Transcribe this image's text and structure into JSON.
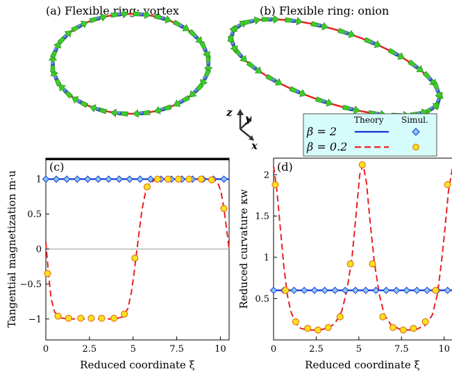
{
  "panels": {
    "a_title": "(a) Flexible ring: vortex",
    "b_title": "(b) Flexible ring: onion",
    "c_label": "(c)",
    "d_label": "(d)"
  },
  "axes_triad": {
    "z": "z",
    "y": "y",
    "x": "x"
  },
  "legend": {
    "theory": "Theory",
    "simul": "Simul.",
    "row1": "β = 2",
    "row2": "β = 0.2"
  },
  "colors": {
    "beta2": "#1030d0",
    "beta02": "#e8201f",
    "marker_beta2_fill": "#86c8f2",
    "marker_beta02_fill": "#f6e21e",
    "marker_beta02_edge": "#e8600a",
    "legend_bg": "#d6fbfb",
    "ring": "#e8201f",
    "arrow": "#3ccc2a",
    "dot": "#2040c0"
  },
  "chart_data": [
    {
      "type": "line",
      "panel": "c",
      "xlabel": "Reduced coordinate ξ",
      "ylabel": "Tangential magnetization m·u",
      "xlim": [
        0,
        10.5
      ],
      "ylim": [
        -1.3,
        1.3
      ],
      "xticks": [
        "0",
        "2.5",
        "5",
        "7.5",
        "10"
      ],
      "xtick_values": [
        0,
        2.5,
        5,
        7.5,
        10
      ],
      "yticks": [
        "−1",
        "−0.5",
        "0",
        "0.5",
        "1"
      ],
      "ytick_values": [
        -1,
        -0.5,
        0,
        0.5,
        1
      ],
      "series": [
        {
          "name": "β = 2",
          "style": "solid",
          "theory": {
            "x": [
              0,
              10.5
            ],
            "y": [
              1,
              1
            ]
          },
          "simul": {
            "x": [
              0,
              0.6,
              1.2,
              1.8,
              2.4,
              3.0,
              3.6,
              4.2,
              4.8,
              5.4,
              6.0,
              6.6,
              7.2,
              7.8,
              8.4,
              9.0,
              9.6,
              10.2
            ],
            "y": [
              1,
              1,
              1,
              1,
              1,
              1,
              1,
              1,
              1,
              1,
              1,
              1,
              1,
              1,
              1,
              1,
              1,
              1
            ]
          }
        },
        {
          "name": "β = 0.2",
          "style": "dashed",
          "theory": {
            "x": [
              0,
              0.15,
              0.3,
              0.5,
              0.8,
              1.2,
              2,
              3,
              4,
              4.4,
              4.7,
              4.9,
              5.05,
              5.2,
              5.35,
              5.5,
              5.7,
              5.9,
              6.2,
              6.6,
              7.5,
              8.5,
              9.3,
              9.7,
              9.9,
              10.05,
              10.2,
              10.35,
              10.5
            ],
            "y": [
              0.1,
              -0.35,
              -0.7,
              -0.9,
              -0.98,
              -1,
              -1,
              -1,
              -1,
              -0.97,
              -0.85,
              -0.62,
              -0.35,
              -0.05,
              0.25,
              0.55,
              0.8,
              0.93,
              0.98,
              1,
              1,
              1,
              1,
              0.98,
              0.92,
              0.8,
              0.58,
              0.3,
              0
            ]
          },
          "simul": {
            "x": [
              0.1,
              0.7,
              1.3,
              2.0,
              2.6,
              3.2,
              3.9,
              4.5,
              5.1,
              5.8,
              6.4,
              7.0,
              7.6,
              8.2,
              8.9,
              9.5,
              10.2
            ],
            "y": [
              -0.35,
              -0.96,
              -0.99,
              -0.99,
              -0.99,
              -0.99,
              -0.99,
              -0.93,
              -0.13,
              0.89,
              1.0,
              1.0,
              1.0,
              1.0,
              1.0,
              0.99,
              0.58
            ]
          }
        }
      ]
    },
    {
      "type": "line",
      "panel": "d",
      "xlabel": "Reduced coordinate ξ",
      "ylabel": "Reduced curvature κw",
      "xlim": [
        0,
        10.5
      ],
      "ylim": [
        0,
        2.2
      ],
      "xticks": [
        "0",
        "2.5",
        "5",
        "7.5",
        "10"
      ],
      "xtick_values": [
        0,
        2.5,
        5,
        7.5,
        10
      ],
      "yticks": [
        "0.5",
        "1",
        "1.5",
        "2"
      ],
      "ytick_values": [
        0.5,
        1,
        1.5,
        2
      ],
      "series": [
        {
          "name": "β = 2",
          "style": "solid",
          "theory": {
            "x": [
              0,
              10.5
            ],
            "y": [
              0.6,
              0.6
            ]
          },
          "simul": {
            "x": [
              0,
              0.6,
              1.2,
              1.8,
              2.4,
              3.0,
              3.6,
              4.2,
              4.8,
              5.4,
              6.0,
              6.6,
              7.2,
              7.8,
              8.4,
              9.0,
              9.6,
              10.2
            ],
            "y": [
              0.6,
              0.6,
              0.6,
              0.6,
              0.6,
              0.6,
              0.6,
              0.6,
              0.6,
              0.6,
              0.6,
              0.6,
              0.6,
              0.6,
              0.6,
              0.6,
              0.6,
              0.6
            ]
          }
        },
        {
          "name": "β = 0.2",
          "style": "dashed",
          "theory": {
            "x": [
              0,
              0.2,
              0.4,
              0.6,
              0.8,
              1.0,
              1.3,
              1.6,
              2.0,
              2.6,
              3.2,
              3.6,
              4.0,
              4.3,
              4.6,
              4.85,
              5.05,
              5.25,
              5.45,
              5.65,
              5.9,
              6.2,
              6.5,
              6.9,
              7.4,
              7.9,
              8.4,
              8.9,
              9.3,
              9.6,
              9.85,
              10.05,
              10.25,
              10.5
            ],
            "y": [
              2.1,
              1.8,
              1.35,
              0.9,
              0.55,
              0.35,
              0.2,
              0.14,
              0.12,
              0.12,
              0.14,
              0.2,
              0.35,
              0.6,
              1.0,
              1.55,
              2.0,
              2.12,
              1.9,
              1.45,
              0.95,
              0.55,
              0.3,
              0.18,
              0.13,
              0.12,
              0.13,
              0.18,
              0.3,
              0.55,
              0.95,
              1.35,
              1.8,
              2.1
            ]
          },
          "simul": {
            "x": [
              0.1,
              0.7,
              1.3,
              2.0,
              2.6,
              3.2,
              3.9,
              4.5,
              5.2,
              5.8,
              6.4,
              7.0,
              7.6,
              8.2,
              8.9,
              9.5,
              10.2
            ],
            "y": [
              1.88,
              0.6,
              0.22,
              0.14,
              0.12,
              0.15,
              0.28,
              0.92,
              2.12,
              0.92,
              0.28,
              0.15,
              0.12,
              0.14,
              0.22,
              0.6,
              1.88
            ]
          }
        }
      ]
    }
  ]
}
